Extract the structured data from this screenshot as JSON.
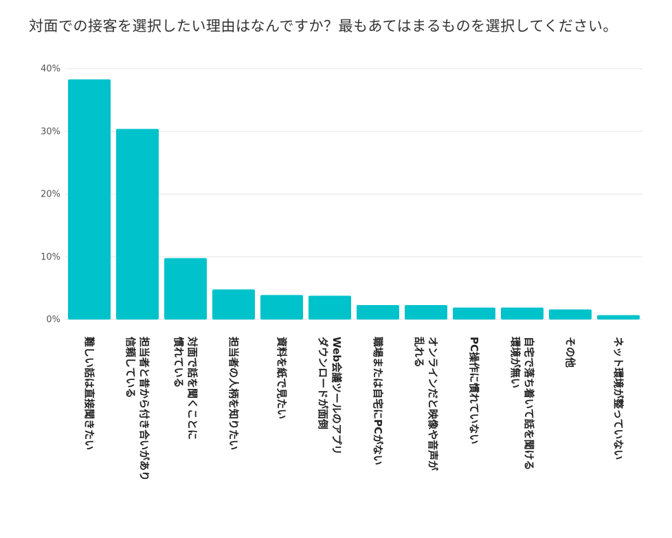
{
  "chart_data": {
    "type": "bar",
    "title": "対面での接客を選択したい理由はなんですか？最もあてはまるものを選択してください。",
    "categories": [
      "難しい話は直接聞きたい",
      "担当者と昔から付き合いがあり信頼している",
      "対面で話を聞くことに慣れている",
      "担当者の人柄を知りたい",
      "資料を紙で見たい",
      "Web会議ツールのアプリダウンロードが面倒",
      "職場または自宅にPCがない",
      "オンラインだと映像や音声が乱れる",
      "PC操作に慣れていない",
      "自宅で落ち着いて話を聞ける環境が無い",
      "その他",
      "ネット環境が整っていない"
    ],
    "label_lines": [
      [
        "難しい話は直接聞きたい"
      ],
      [
        "担当者と昔から付き合いがあり",
        "信頼している"
      ],
      [
        "対面で話を聞くことに",
        "慣れている"
      ],
      [
        "担当者の人柄を知りたい"
      ],
      [
        "資料を紙で見たい"
      ],
      [
        "Web会議ツールのアプリ",
        "ダウンロードが面倒"
      ],
      [
        "職場または自宅にPCがない"
      ],
      [
        "オンラインだと映像や音声が",
        "乱れる"
      ],
      [
        "PC操作に慣れていない"
      ],
      [
        "自宅で落ち着いて話を聞ける",
        "環境が無い"
      ],
      [
        "その他"
      ],
      [
        "ネット環境が整っていない"
      ]
    ],
    "values": [
      38.3,
      30.4,
      9.8,
      4.8,
      3.9,
      3.8,
      2.3,
      2.3,
      1.9,
      1.9,
      1.6,
      0.7
    ],
    "ylim": [
      0,
      40
    ],
    "yticks": [
      0,
      10,
      20,
      30,
      40
    ],
    "ytick_labels": [
      "0%",
      "10%",
      "20%",
      "30%",
      "40%"
    ],
    "xlabel": "",
    "ylabel": "",
    "grid": true,
    "bar_color": "#00C2CB",
    "grid_color": "#E6E6E6"
  }
}
